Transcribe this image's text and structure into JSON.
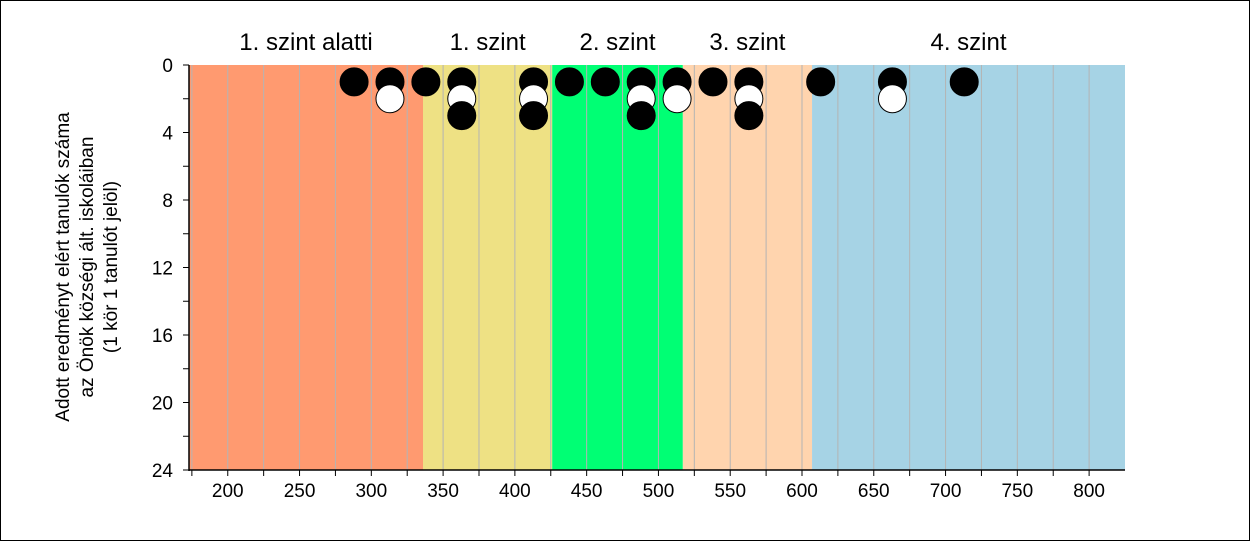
{
  "chart_data": {
    "type": "scatter",
    "ylabel_lines": [
      "Adott eredményt elért tanulók száma",
      "az Önök községi ált. iskoláiban",
      "(1 kör 1 tanulót jelöl)"
    ],
    "xlim": [
      173,
      825
    ],
    "ylim": [
      0,
      24
    ],
    "y_inverted": true,
    "x_ticks": [
      200,
      250,
      300,
      350,
      400,
      450,
      500,
      550,
      600,
      650,
      700,
      750,
      800
    ],
    "y_ticks": [
      0,
      4,
      8,
      12,
      16,
      20,
      24
    ],
    "minor_grid_step": 25,
    "bands": [
      {
        "label": "1. szint alatti",
        "from": 173,
        "to": 336,
        "color": "#FF9A70"
      },
      {
        "label": "1. szint",
        "from": 336,
        "to": 426,
        "color": "#EEE184"
      },
      {
        "label": "2. szint",
        "from": 426,
        "to": 517,
        "color": "#00FF74"
      },
      {
        "label": "3. szint",
        "from": 517,
        "to": 607,
        "color": "#FFD4AE"
      },
      {
        "label": "4. szint",
        "from": 607,
        "to": 825,
        "color": "#A6D3E5"
      }
    ],
    "points": [
      {
        "x": 288,
        "y": 1,
        "fill": "black"
      },
      {
        "x": 313,
        "y": 1,
        "fill": "black"
      },
      {
        "x": 313,
        "y": 2,
        "fill": "white"
      },
      {
        "x": 338,
        "y": 1,
        "fill": "black"
      },
      {
        "x": 363,
        "y": 1,
        "fill": "black"
      },
      {
        "x": 363,
        "y": 2,
        "fill": "white"
      },
      {
        "x": 363,
        "y": 3,
        "fill": "black"
      },
      {
        "x": 413,
        "y": 1,
        "fill": "black"
      },
      {
        "x": 413,
        "y": 2,
        "fill": "white"
      },
      {
        "x": 413,
        "y": 3,
        "fill": "black"
      },
      {
        "x": 438,
        "y": 1,
        "fill": "black"
      },
      {
        "x": 463,
        "y": 1,
        "fill": "black"
      },
      {
        "x": 488,
        "y": 1,
        "fill": "black"
      },
      {
        "x": 488,
        "y": 2,
        "fill": "white"
      },
      {
        "x": 488,
        "y": 3,
        "fill": "black"
      },
      {
        "x": 513,
        "y": 1,
        "fill": "black"
      },
      {
        "x": 513,
        "y": 2,
        "fill": "white"
      },
      {
        "x": 538,
        "y": 1,
        "fill": "black"
      },
      {
        "x": 563,
        "y": 1,
        "fill": "black"
      },
      {
        "x": 563,
        "y": 2,
        "fill": "white"
      },
      {
        "x": 563,
        "y": 3,
        "fill": "black"
      },
      {
        "x": 613,
        "y": 1,
        "fill": "black"
      },
      {
        "x": 663,
        "y": 1,
        "fill": "black"
      },
      {
        "x": 663,
        "y": 2,
        "fill": "white"
      },
      {
        "x": 713,
        "y": 1,
        "fill": "black"
      }
    ],
    "grid": true,
    "legend": "none"
  }
}
